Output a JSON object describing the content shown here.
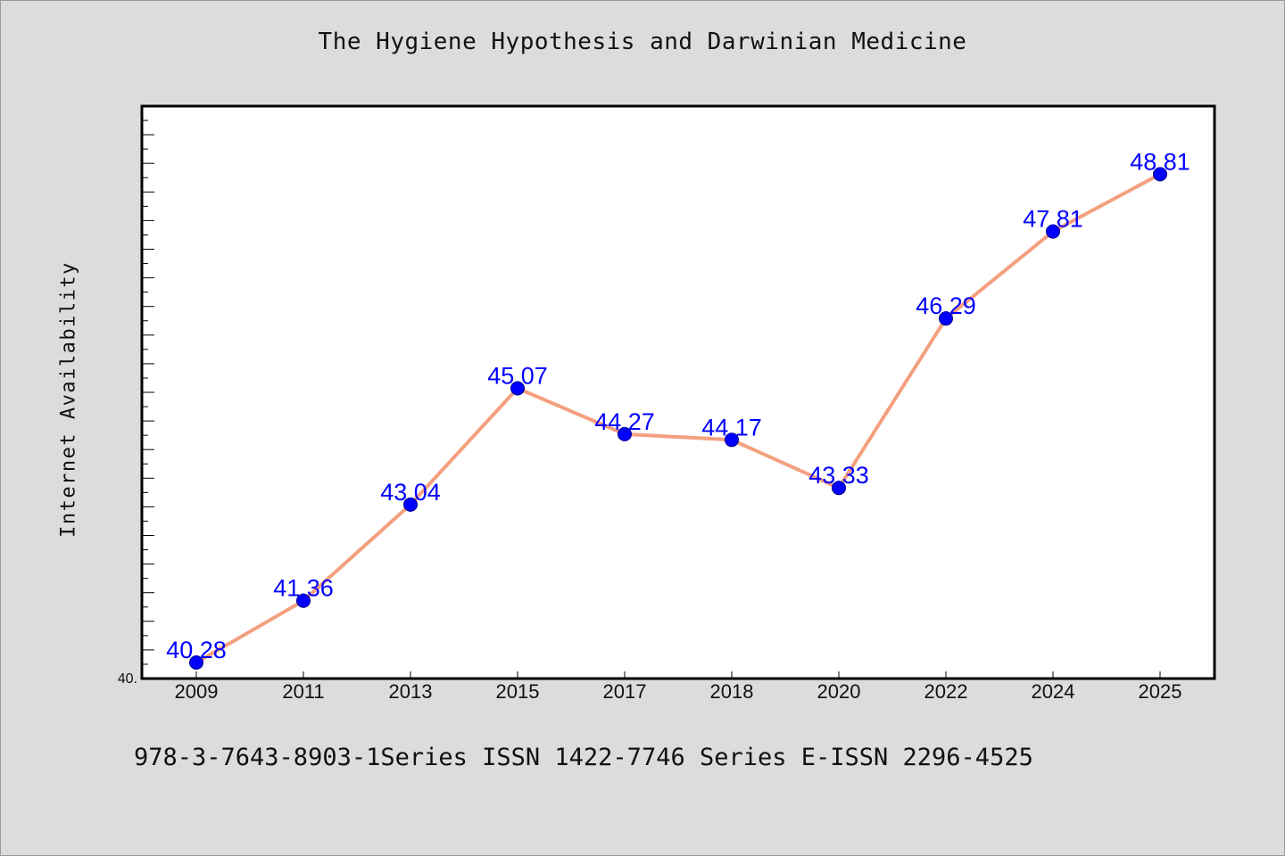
{
  "chart_data": {
    "type": "line",
    "title": "The Hygiene Hypothesis and Darwinian Medicine",
    "xlabel": "",
    "ylabel": "Internet Availability",
    "categories": [
      "2009",
      "2011",
      "2013",
      "2015",
      "2017",
      "2018",
      "2020",
      "2022",
      "2024",
      "2025"
    ],
    "series": [
      {
        "values": [
          40.28,
          41.36,
          43.04,
          45.07,
          44.27,
          44.17,
          43.33,
          46.29,
          47.81,
          48.81
        ],
        "data_labels": [
          "40.28",
          "41.36",
          "43.04",
          "45.07",
          "44.27",
          "44.17",
          "43.33",
          "46.29",
          "47.81",
          "48.81"
        ]
      }
    ],
    "ylim": [
      40,
      50
    ],
    "y_tick_label": "40.",
    "grid": false,
    "legend": "none",
    "colors": {
      "line": "#f4a07f",
      "marker": "#0000ff",
      "marker_edge": "#00008b",
      "data_label": "#0000ff",
      "plot_background": "#ffffff",
      "figure_background": "#dcdcdc"
    }
  },
  "footer": {
    "text": "978-3-7643-8903-1Series ISSN 1422-7746 Series E-ISSN 2296-4525"
  }
}
